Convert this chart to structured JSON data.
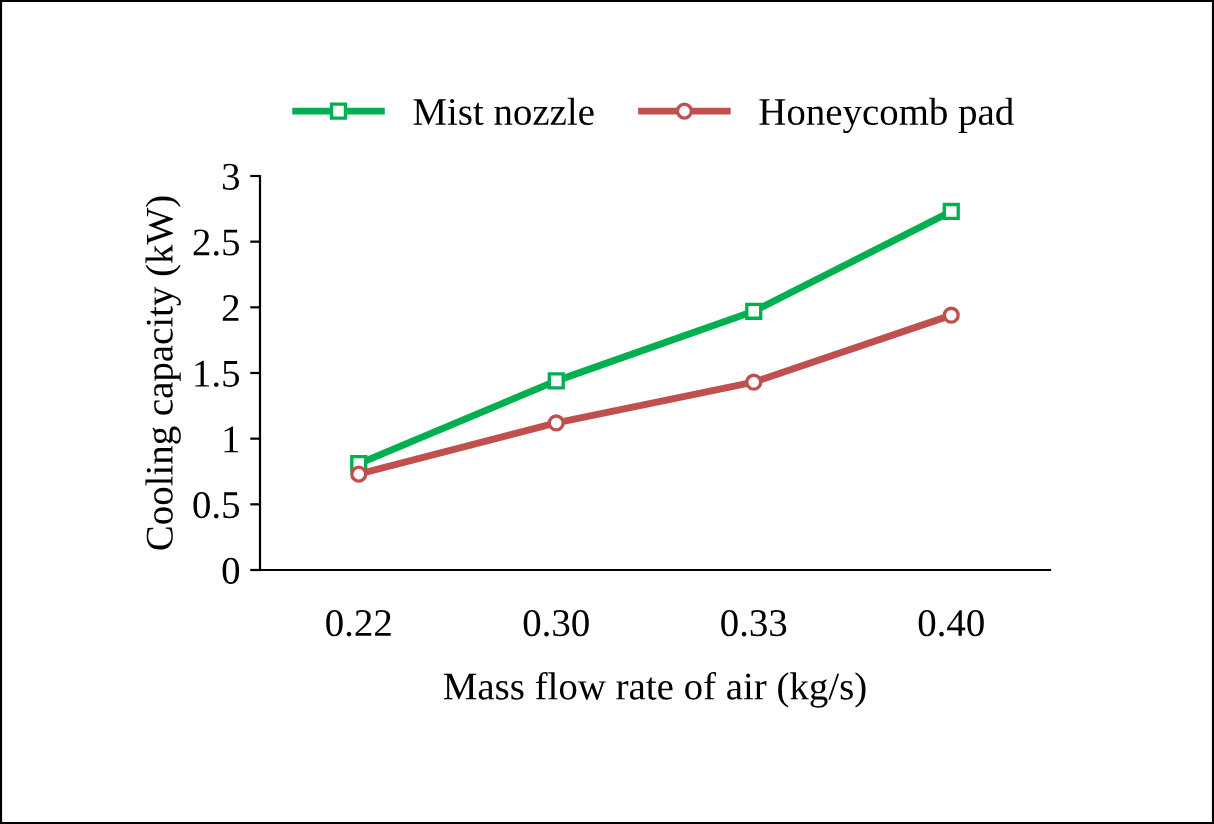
{
  "chart_data": {
    "type": "line",
    "xlabel": "Mass flow rate of air (kg/s)",
    "ylabel": "Cooling capacity (kW)",
    "categories": [
      "0.22",
      "0.30",
      "0.33",
      "0.40"
    ],
    "series": [
      {
        "name": "Mist nozzle",
        "color": "#00b050",
        "marker": "square",
        "values": [
          0.81,
          1.44,
          1.97,
          2.73
        ]
      },
      {
        "name": "Honeycomb pad",
        "color": "#c0504d",
        "marker": "circle",
        "values": [
          0.73,
          1.12,
          1.43,
          1.94
        ]
      }
    ],
    "ylim": [
      0,
      3
    ],
    "yticks": [
      0,
      0.5,
      1,
      1.5,
      2,
      2.5,
      3
    ],
    "grid": false,
    "legend": "top",
    "line_style": "solid"
  }
}
